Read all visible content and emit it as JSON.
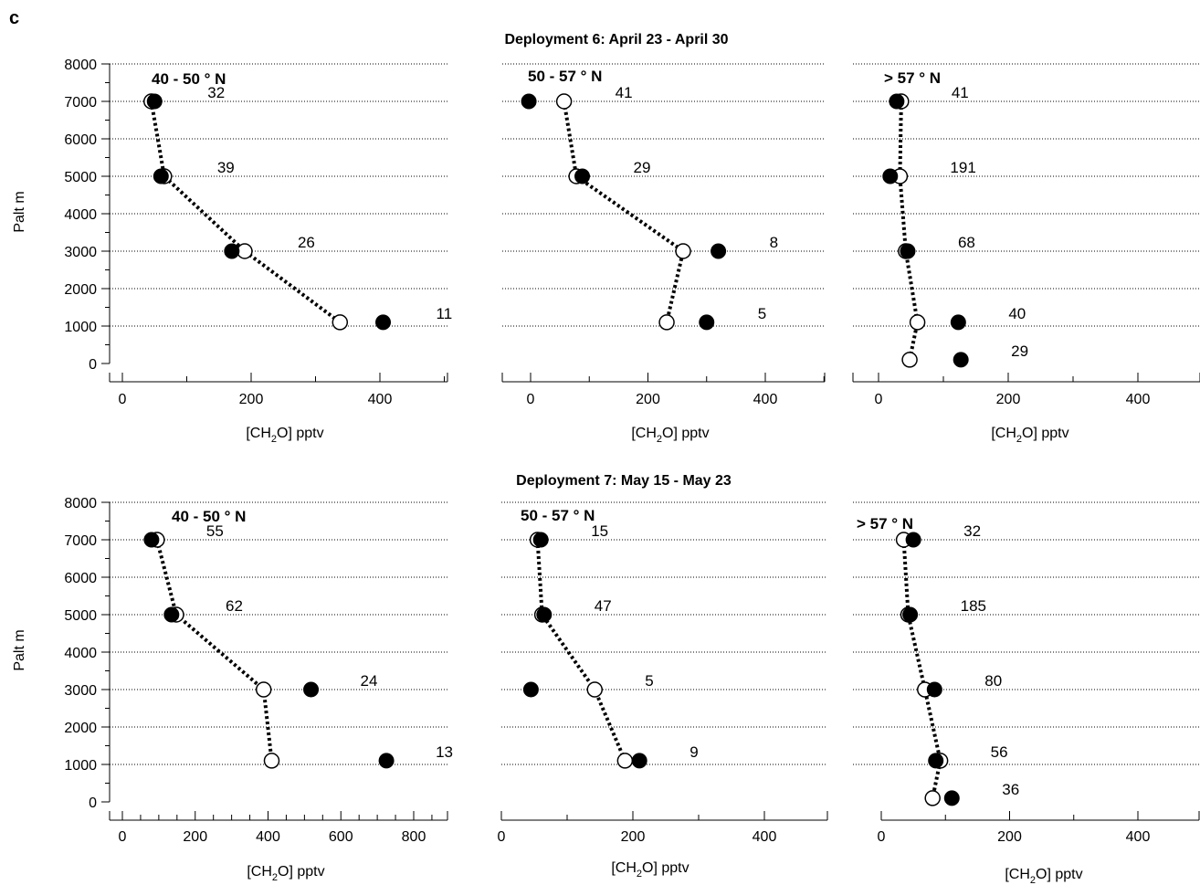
{
  "figure_label": "c",
  "y_axis_label": "Palt m",
  "x_axis_label_prefix": "[CH",
  "x_axis_label_sub": "2",
  "x_axis_label_suffix": "O] pptv",
  "colors": {
    "filled_marker": "#000000",
    "open_marker": "#ffffff",
    "profile_line": "#000000",
    "grid": "#000000"
  },
  "chart_data": [
    {
      "type": "scatter",
      "title": "Deployment 6: April 23 - April 30",
      "panel_label": "40 - 50 ° N",
      "ylim": [
        0,
        8000
      ],
      "xlim": [
        0,
        500
      ],
      "xticks": [
        0,
        200,
        400
      ],
      "x_minor": 100,
      "open": [
        [
          45,
          7000
        ],
        [
          65,
          5000
        ],
        [
          190,
          3000
        ],
        [
          338,
          1100
        ]
      ],
      "filled": [
        [
          50,
          7000
        ],
        [
          60,
          5000
        ],
        [
          170,
          3000
        ],
        [
          405,
          1100
        ]
      ],
      "labels": [
        [
          "32",
          7000
        ],
        [
          "39",
          5000
        ],
        [
          "26",
          3000
        ],
        [
          "11",
          1100
        ]
      ]
    },
    {
      "type": "scatter",
      "title": "",
      "panel_label": "50 - 57 ° N",
      "ylim": [
        0,
        8000
      ],
      "xlim": [
        -50,
        500
      ],
      "xticks": [
        0,
        200,
        400
      ],
      "x_minor": 100,
      "open": [
        [
          57,
          7000
        ],
        [
          78,
          5000
        ],
        [
          260,
          3000
        ],
        [
          232,
          1100
        ]
      ],
      "filled": [
        [
          -3,
          7000
        ],
        [
          88,
          5000
        ],
        [
          320,
          3000
        ],
        [
          300,
          1100
        ]
      ],
      "labels": [
        [
          "41",
          7000
        ],
        [
          "29",
          5000
        ],
        [
          "8",
          3000
        ],
        [
          "5",
          1100
        ]
      ]
    },
    {
      "type": "scatter",
      "title": "",
      "panel_label": "> 57 ° N",
      "ylim": [
        0,
        8000
      ],
      "xlim": [
        0,
        500
      ],
      "xticks": [
        0,
        200,
        400
      ],
      "x_minor": 100,
      "open": [
        [
          35,
          7000
        ],
        [
          33,
          5000
        ],
        [
          42,
          3000
        ],
        [
          60,
          1100
        ],
        [
          48,
          100
        ]
      ],
      "filled": [
        [
          28,
          7000
        ],
        [
          18,
          5000
        ],
        [
          45,
          3000
        ],
        [
          123,
          1100
        ],
        [
          127,
          100
        ]
      ],
      "labels": [
        [
          "41",
          7000
        ],
        [
          "191",
          5000
        ],
        [
          "68",
          3000
        ],
        [
          "40",
          1100
        ],
        [
          "29",
          100
        ]
      ]
    },
    {
      "type": "scatter",
      "title": "Deployment 7: May 15 - May 23",
      "panel_label": "40 - 50 ° N",
      "ylim": [
        0,
        8000
      ],
      "xlim": [
        0,
        900
      ],
      "xticks": [
        0,
        200,
        400,
        600,
        800
      ],
      "x_minor": 50,
      "open": [
        [
          95,
          7000
        ],
        [
          148,
          5000
        ],
        [
          388,
          3000
        ],
        [
          410,
          1100
        ]
      ],
      "filled": [
        [
          80,
          7000
        ],
        [
          135,
          5000
        ],
        [
          518,
          3000
        ],
        [
          725,
          1100
        ]
      ],
      "labels": [
        [
          "55",
          7000
        ],
        [
          "62",
          5000
        ],
        [
          "24",
          3000
        ],
        [
          "13",
          1100
        ]
      ]
    },
    {
      "type": "scatter",
      "title": "",
      "panel_label": "50 - 57 ° N",
      "ylim": [
        0,
        8000
      ],
      "xlim": [
        0,
        500
      ],
      "xticks": [
        0,
        200,
        400
      ],
      "x_minor": 100,
      "open": [
        [
          55,
          7000
        ],
        [
          62,
          5000
        ],
        [
          142,
          3000
        ],
        [
          188,
          1100
        ]
      ],
      "filled": [
        [
          60,
          7000
        ],
        [
          65,
          5000
        ],
        [
          45,
          3000
        ],
        [
          210,
          1100
        ]
      ],
      "labels": [
        [
          "15",
          7000
        ],
        [
          "47",
          5000
        ],
        [
          "5",
          3000
        ],
        [
          "9",
          1100
        ]
      ]
    },
    {
      "type": "scatter",
      "title": "",
      "panel_label": ">  57 ° N",
      "ylim": [
        0,
        8000
      ],
      "xlim": [
        0,
        500
      ],
      "xticks": [
        0,
        200,
        400
      ],
      "x_minor": 100,
      "open": [
        [
          35,
          7000
        ],
        [
          42,
          5000
        ],
        [
          68,
          3000
        ],
        [
          92,
          1100
        ],
        [
          80,
          100
        ]
      ],
      "filled": [
        [
          50,
          7000
        ],
        [
          45,
          5000
        ],
        [
          83,
          3000
        ],
        [
          85,
          1100
        ],
        [
          110,
          100
        ]
      ],
      "labels": [
        [
          "32",
          7000
        ],
        [
          "185",
          5000
        ],
        [
          "80",
          3000
        ],
        [
          "56",
          1100
        ],
        [
          "36",
          100
        ]
      ]
    }
  ]
}
